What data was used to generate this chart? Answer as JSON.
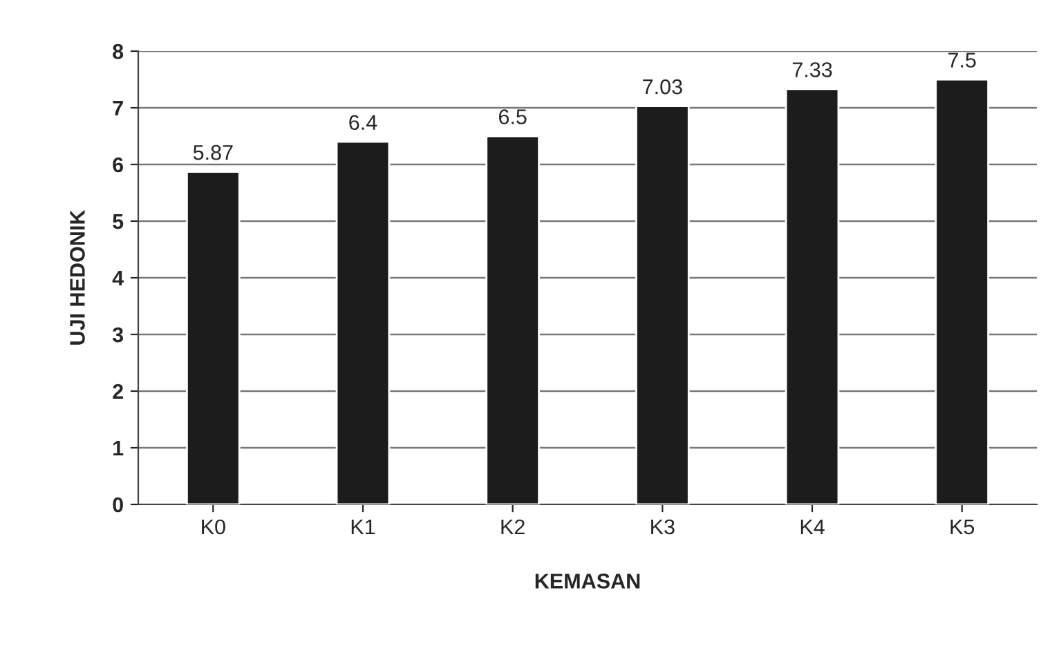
{
  "chart_data": {
    "type": "bar",
    "xlabel": "KEMASAN",
    "ylabel": "UJI HEDONIK",
    "categories": [
      "K0",
      "K1",
      "K2",
      "K3",
      "K4",
      "K5"
    ],
    "values": [
      5.87,
      6.4,
      6.5,
      7.03,
      7.33,
      7.5
    ],
    "color": "#1c1c1c",
    "ylim": [
      0,
      8
    ],
    "yticks": [
      0,
      1,
      2,
      3,
      4,
      5,
      6,
      7,
      8
    ],
    "grid": "y",
    "data_labels": true
  }
}
